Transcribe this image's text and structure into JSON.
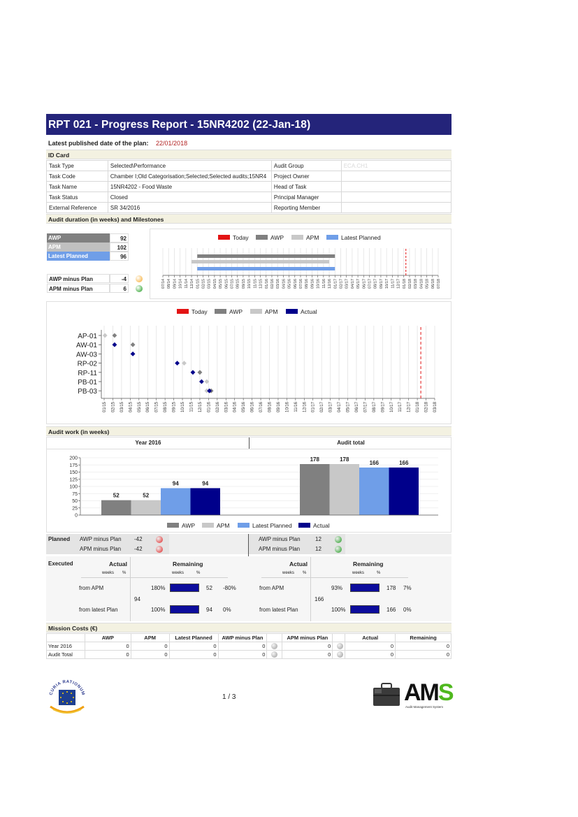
{
  "header": {
    "title": "RPT 021 - Progress Report - 15NR4202 (22-Jan-18)"
  },
  "published": {
    "label": "Latest published date of the plan:",
    "date": "22/01/2018"
  },
  "id_card": {
    "section_title": "ID Card",
    "rows": [
      {
        "label": "Task Type",
        "value": "Selected\\Performance",
        "label2": "Audit Group",
        "value2": "ECA.CH1"
      },
      {
        "label": "Task Code",
        "value": "Chamber I;Old Categorisation;Selected;Selected audits;15NR4",
        "label2": "Project Owner",
        "value2": ""
      },
      {
        "label": "Task Name",
        "value": "15NR4202 - Food Waste",
        "label2": "Head of Task",
        "value2": ""
      },
      {
        "label": "Task Status",
        "value": "Closed",
        "label2": "Principal Manager",
        "value2": ""
      },
      {
        "label": "External Reference",
        "value": "SR 34/2016",
        "label2": "Reporting Member",
        "value2": ""
      }
    ]
  },
  "duration": {
    "section_title": "Audit duration (in weeks) and Milestones",
    "summary": [
      {
        "label": "AWP",
        "value": "92",
        "bg": "#808080"
      },
      {
        "label": "APM",
        "value": "102",
        "bg": "#c0c0c0"
      },
      {
        "label": "Latest Planned",
        "value": "96",
        "bg": "#6f9ee8"
      }
    ],
    "diffs": [
      {
        "label": "AWP minus Plan",
        "value": "-4",
        "color": "#f5a623"
      },
      {
        "label": "APM minus Plan",
        "value": "6",
        "color": "#1a9a1a"
      }
    ]
  },
  "legend_top": [
    {
      "label": "Today",
      "color": "#e31414"
    },
    {
      "label": "AWP",
      "color": "#808080"
    },
    {
      "label": "APM",
      "color": "#c8c8c8"
    },
    {
      "label": "Latest Planned",
      "color": "#6f9ee8"
    }
  ],
  "legend_mid": [
    {
      "label": "Today",
      "color": "#e31414"
    },
    {
      "label": "AWP",
      "color": "#808080"
    },
    {
      "label": "APM",
      "color": "#c8c8c8"
    },
    {
      "label": "Actual",
      "color": "#00008b"
    }
  ],
  "timeline_ticks": [
    "07/14",
    "08/14",
    "09/14",
    "10/14",
    "11/14",
    "12/14",
    "01/15",
    "02/15",
    "03/15",
    "04/15",
    "05/15",
    "06/15",
    "07/15",
    "08/15",
    "09/15",
    "10/15",
    "11/15",
    "12/15",
    "01/16",
    "02/16",
    "03/16",
    "04/16",
    "05/16",
    "06/16",
    "07/16",
    "08/16",
    "09/16",
    "10/16",
    "11/16",
    "12/16",
    "01/17",
    "02/17",
    "03/17",
    "04/17",
    "05/17",
    "06/17",
    "07/17",
    "08/17",
    "09/17",
    "10/17",
    "11/17",
    "12/17",
    "01/18",
    "02/18",
    "03/18",
    "04/18",
    "05/18",
    "06/18",
    "07/18"
  ],
  "milestone_ticks": [
    "01/15",
    "02/15",
    "03/15",
    "04/15",
    "05/15",
    "06/15",
    "07/15",
    "08/15",
    "09/15",
    "10/15",
    "11/15",
    "12/15",
    "01/16",
    "02/16",
    "03/16",
    "04/16",
    "05/16",
    "06/16",
    "07/16",
    "08/16",
    "09/16",
    "10/16",
    "11/16",
    "12/16",
    "01/17",
    "02/17",
    "03/17",
    "04/17",
    "05/17",
    "06/17",
    "07/17",
    "08/17",
    "09/17",
    "10/17",
    "11/17",
    "12/17",
    "01/18",
    "02/18",
    "03/18"
  ],
  "chart_data": [
    {
      "type": "bar",
      "orientation": "horizontal",
      "title": "",
      "x_ticks": [
        "07/14",
        "08/14",
        "09/14",
        "10/14",
        "11/14",
        "12/14",
        "01/15",
        "02/15",
        "03/15",
        "04/15",
        "05/15",
        "06/15",
        "07/15",
        "08/15",
        "09/15",
        "10/15",
        "11/15",
        "12/15",
        "01/16",
        "02/16",
        "03/16",
        "04/16",
        "05/16",
        "06/16",
        "07/16",
        "08/16",
        "09/16",
        "10/16",
        "11/16",
        "12/16",
        "01/17",
        "02/17",
        "03/17",
        "04/17",
        "05/17",
        "06/17",
        "07/17",
        "08/17",
        "09/17",
        "10/17",
        "11/17",
        "12/17",
        "01/18",
        "02/18",
        "03/18",
        "04/18",
        "05/18",
        "06/18",
        "07/18"
      ],
      "series": [
        {
          "name": "AWP",
          "start": "01/15",
          "end": "01/17",
          "color": "#808080"
        },
        {
          "name": "APM",
          "start": "12/14",
          "end": "12/16",
          "color": "#c8c8c8"
        },
        {
          "name": "Latest Planned",
          "start": "01/15",
          "end": "01/17",
          "color": "#6f9ee8"
        }
      ],
      "today": "01/18"
    },
    {
      "type": "scatter",
      "title": "",
      "categories": [
        "AP-01",
        "AW-01",
        "AW-03",
        "RP-02",
        "RP-11",
        "PB-01",
        "PB-03"
      ],
      "x_ticks": [
        "01/15",
        "02/15",
        "03/15",
        "04/15",
        "05/15",
        "06/15",
        "07/15",
        "08/15",
        "09/15",
        "10/15",
        "11/15",
        "12/15",
        "01/16",
        "02/16",
        "03/16",
        "04/16",
        "05/16",
        "06/16",
        "07/16",
        "08/16",
        "09/16",
        "10/16",
        "11/16",
        "12/16",
        "01/17",
        "02/17",
        "03/17",
        "04/17",
        "05/17",
        "06/17",
        "07/17",
        "08/17",
        "09/17",
        "10/17",
        "11/17",
        "12/17",
        "01/18",
        "02/18",
        "03/18"
      ],
      "series": [
        {
          "name": "APM",
          "color": "#c8c8c8",
          "points": [
            [
              "AP-01",
              0.1
            ],
            [
              "AW-03",
              3.3
            ],
            [
              "RP-02",
              9.2
            ],
            [
              "RP-11",
              11.0
            ],
            [
              "PB-01",
              11.8
            ],
            [
              "PB-03",
              11.8
            ]
          ]
        },
        {
          "name": "AWP",
          "color": "#808080",
          "points": [
            [
              "AP-01",
              1.2
            ],
            [
              "AW-01",
              3.3
            ],
            [
              "RP-11",
              11.0
            ],
            [
              "PB-03",
              12.3
            ]
          ]
        },
        {
          "name": "Actual",
          "color": "#00008b",
          "points": [
            [
              "AW-01",
              1.2
            ],
            [
              "AW-03",
              3.3
            ],
            [
              "RP-02",
              8.4
            ],
            [
              "RP-11",
              10.2
            ],
            [
              "PB-01",
              11.2
            ],
            [
              "PB-03",
              12.1
            ]
          ]
        }
      ],
      "today": "01/18"
    },
    {
      "type": "bar",
      "title": "Year 2016",
      "ylim": [
        0,
        200
      ],
      "y_ticks": [
        0,
        25,
        50,
        75,
        100,
        125,
        150,
        175,
        200
      ],
      "categories": [
        "AWP",
        "APM",
        "Latest Planned",
        "Actual"
      ],
      "values": [
        52,
        52,
        94,
        94
      ],
      "colors": [
        "#808080",
        "#c8c8c8",
        "#6f9ee8",
        "#00008b"
      ]
    },
    {
      "type": "bar",
      "title": "Audit total",
      "categories": [
        "AWP",
        "APM",
        "Latest Planned",
        "Actual"
      ],
      "values": [
        178,
        178,
        166,
        166
      ],
      "colors": [
        "#808080",
        "#c8c8c8",
        "#6f9ee8",
        "#00008b"
      ]
    }
  ],
  "work": {
    "section_title": "Audit work (in weeks)",
    "year_title": "Year 2016",
    "total_title": "Audit total",
    "legend": [
      {
        "label": "AWP",
        "color": "#808080"
      },
      {
        "label": "APM",
        "color": "#c8c8c8"
      },
      {
        "label": "Latest Planned",
        "color": "#6f9ee8"
      },
      {
        "label": "Actual",
        "color": "#00008b"
      }
    ]
  },
  "planned": {
    "label": "Planned",
    "left": [
      {
        "label": "AWP minus Plan",
        "value": "-42",
        "color": "#e02020"
      },
      {
        "label": "APM minus Plan",
        "value": "-42",
        "color": "#e02020"
      }
    ],
    "right": [
      {
        "label": "AWP minus Plan",
        "value": "12",
        "color": "#1a9a1a"
      },
      {
        "label": "APM minus Plan",
        "value": "12",
        "color": "#1a9a1a"
      }
    ]
  },
  "executed": {
    "label": "Executed",
    "actual": "Actual",
    "remaining": "Remaining",
    "weeks": "weeks",
    "pct": "%",
    "left": {
      "from_apm": {
        "label": "from APM",
        "actual_pct": "180%",
        "rem_weeks": "52",
        "rem_pct": "-80%"
      },
      "actual_weeks": "94",
      "from_latest": {
        "label": "from latest Plan",
        "actual_pct": "100%",
        "rem_weeks": "94",
        "rem_pct": "0%"
      }
    },
    "right": {
      "from_apm": {
        "label": "from APM",
        "actual_pct": "93%",
        "rem_weeks": "178",
        "rem_pct": "7%"
      },
      "actual_weeks": "166",
      "from_latest": {
        "label": "from latest Plan",
        "actual_pct": "100%",
        "rem_weeks": "166",
        "rem_pct": "0%"
      }
    }
  },
  "costs": {
    "section_title": "Mission Costs (€)",
    "headers": [
      "AWP",
      "APM",
      "Latest Planned",
      "AWP minus Plan",
      "APM minus Plan",
      "Actual",
      "Remaining"
    ],
    "rows": [
      {
        "label": "Year 2016",
        "awp": "0",
        "apm": "0",
        "latest": "0",
        "awp_minus": "0",
        "apm_minus": "0",
        "actual": "0",
        "remaining": "0"
      },
      {
        "label": "Audit Total",
        "awp": "0",
        "apm": "0",
        "latest": "0",
        "awp_minus": "0",
        "apm_minus": "0",
        "actual": "0",
        "remaining": "0"
      }
    ]
  },
  "footer": {
    "page": "1 / 3",
    "left_logo_text": "CURIA RATIONUM",
    "right_logo": "AMS",
    "right_logo_sub": "Audit Management System"
  }
}
